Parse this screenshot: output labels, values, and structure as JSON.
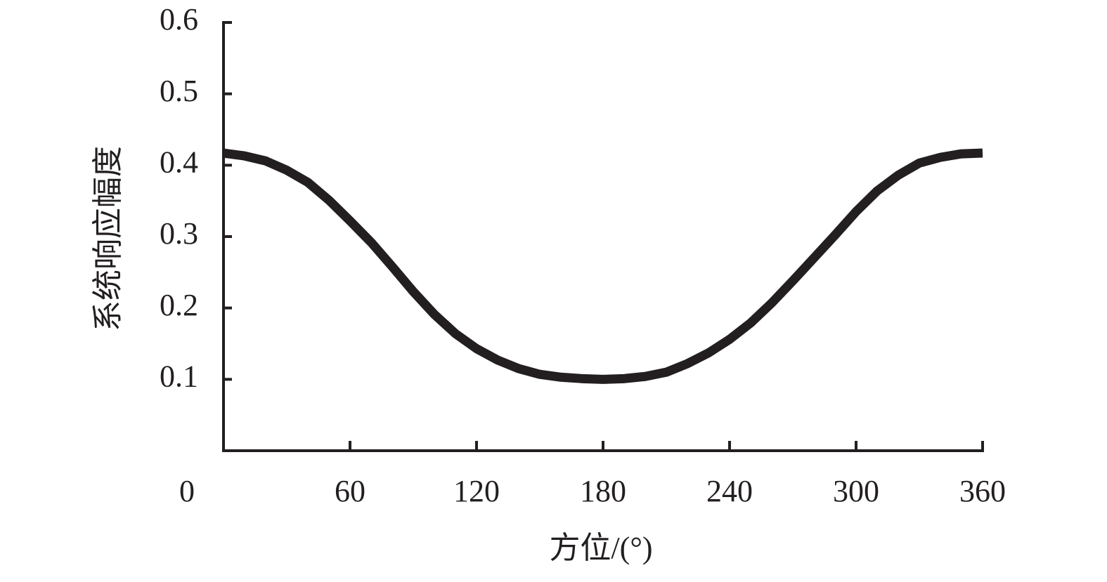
{
  "chart_data": {
    "type": "line",
    "x_label": "方位/(°)",
    "y_label": "系统响应幅度",
    "x": [
      0,
      10,
      20,
      30,
      40,
      50,
      60,
      70,
      80,
      90,
      100,
      110,
      120,
      130,
      140,
      150,
      160,
      170,
      180,
      190,
      200,
      210,
      220,
      230,
      240,
      250,
      260,
      270,
      280,
      290,
      300,
      310,
      320,
      330,
      340,
      350,
      360
    ],
    "series": [
      {
        "color": "#231f20",
        "values": [
          0.417,
          0.413,
          0.406,
          0.393,
          0.376,
          0.351,
          0.322,
          0.292,
          0.258,
          0.223,
          0.191,
          0.164,
          0.143,
          0.127,
          0.115,
          0.107,
          0.103,
          0.101,
          0.1,
          0.101,
          0.104,
          0.11,
          0.122,
          0.137,
          0.156,
          0.179,
          0.207,
          0.238,
          0.27,
          0.302,
          0.335,
          0.364,
          0.386,
          0.403,
          0.411,
          0.416,
          0.417
        ]
      }
    ],
    "xlim": [
      0,
      360
    ],
    "xticks": [
      0,
      60,
      120,
      180,
      240,
      300,
      360
    ],
    "ylim": [
      0,
      0.6
    ],
    "yticks": [
      0.1,
      0.2,
      0.3,
      0.4,
      0.5,
      0.6
    ]
  }
}
